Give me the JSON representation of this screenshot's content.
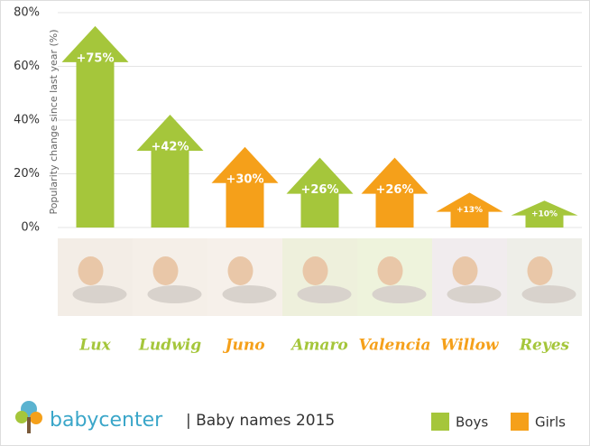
{
  "chart_data": {
    "type": "arrow-bar",
    "y_label": "Popularity change since last year (%)",
    "categories": [
      "Lux",
      "Ludwig",
      "Juno",
      "Amaro",
      "Valencia",
      "Willow",
      "Reyes"
    ],
    "series": [
      {
        "name": "Boys",
        "color": "#a5c63b",
        "values": [
          75,
          42,
          null,
          26,
          null,
          null,
          10
        ],
        "value_labels": [
          "+75%",
          "+42%",
          null,
          "+26%",
          null,
          null,
          "+10%"
        ]
      },
      {
        "name": "Girls",
        "color": "#f5a01a",
        "values": [
          null,
          null,
          30,
          null,
          26,
          13,
          null
        ],
        "value_labels": [
          null,
          null,
          "+30%",
          null,
          "+26%",
          "+13%",
          null
        ]
      }
    ],
    "ylim": [
      0,
      80
    ],
    "yticks": [
      {
        "value": 0,
        "label": "0%"
      },
      {
        "value": 20,
        "label": "20%"
      },
      {
        "value": 40,
        "label": "40%"
      },
      {
        "value": 60,
        "label": "60%"
      },
      {
        "value": 80,
        "label": "80%"
      }
    ],
    "grid": true,
    "brand": "babycenter",
    "caption": "| Baby names 2015"
  }
}
